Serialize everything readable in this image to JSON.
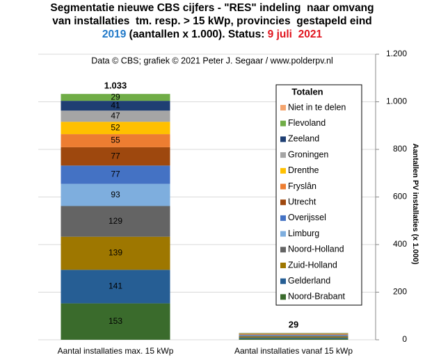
{
  "chart_data": {
    "type": "stacked_bar",
    "title": [
      [
        {
          "text": "Segmentatie nieuwe CBS cijfers - \"RES\" indeling  naar omvang",
          "color": "#000000"
        }
      ],
      [
        {
          "text": "van installaties  tm. resp. > 15 kWp, provincies  gestapeld eind",
          "color": "#000000"
        }
      ],
      [
        {
          "text": "2019",
          "color": "#1f78c8"
        },
        {
          "text": " (aantallen x 1.000). Status: ",
          "color": "#000000"
        },
        {
          "text": "9 juli  2021",
          "color": "#e0141e"
        }
      ]
    ],
    "subtitle": "Data © CBS; grafiek © 2021 Peter J. Segaar / www.polderpv.nl",
    "categories": [
      "Aantal installaties max. 15 kWp",
      "Aantal installaties vanaf 15 kWp"
    ],
    "series": [
      {
        "name": "Noord-Brabant",
        "color": "#3a6b2c",
        "values": [
          153,
          5
        ],
        "value_labels": [
          "153",
          null
        ]
      },
      {
        "name": "Gelderland",
        "color": "#265e94",
        "values": [
          141,
          4
        ],
        "value_labels": [
          "141",
          null
        ]
      },
      {
        "name": "Zuid-Holland",
        "color": "#9e7700",
        "values": [
          139,
          4
        ],
        "value_labels": [
          "139",
          null
        ]
      },
      {
        "name": "Noord-Holland",
        "color": "#646464",
        "values": [
          129,
          4
        ],
        "value_labels": [
          "129",
          null
        ]
      },
      {
        "name": "Limburg",
        "color": "#7eaede",
        "values": [
          93,
          2
        ],
        "value_labels": [
          "93",
          null
        ]
      },
      {
        "name": "Overijssel",
        "color": "#4472c4",
        "values": [
          77,
          2
        ],
        "value_labels": [
          "77",
          null
        ]
      },
      {
        "name": "Utrecht",
        "color": "#9e480e",
        "values": [
          77,
          2
        ],
        "value_labels": [
          "77",
          null
        ]
      },
      {
        "name": "Fryslân",
        "color": "#ed7d31",
        "values": [
          55,
          1.5
        ],
        "value_labels": [
          "55",
          null
        ]
      },
      {
        "name": "Drenthe",
        "color": "#ffc000",
        "values": [
          52,
          1.5
        ],
        "value_labels": [
          "52",
          null
        ]
      },
      {
        "name": "Groningen",
        "color": "#a5a5a5",
        "values": [
          47,
          1
        ],
        "value_labels": [
          "47",
          null
        ]
      },
      {
        "name": "Zeeland",
        "color": "#1f3f73",
        "values": [
          41,
          1
        ],
        "value_labels": [
          "41",
          null
        ]
      },
      {
        "name": "Flevoland",
        "color": "#70ad47",
        "values": [
          29,
          1
        ],
        "value_labels": [
          "29",
          null
        ]
      },
      {
        "name": "Niet in te delen",
        "color": "#f4a46e",
        "values": [
          0,
          0
        ],
        "value_labels": [
          null,
          null
        ]
      }
    ],
    "totals": {
      "values": [
        1033,
        29
      ],
      "value_labels": [
        "1.033",
        "29"
      ]
    },
    "legend_title": "Totalen",
    "y_label": "Aantallen PV installaties (x 1.000)",
    "ylim": [
      0,
      1200
    ],
    "yticks": [
      0,
      200,
      400,
      600,
      800,
      {
        "value": 1000,
        "label": "1.000"
      },
      {
        "value": 1200,
        "label": "1.200"
      }
    ],
    "grid": true
  }
}
